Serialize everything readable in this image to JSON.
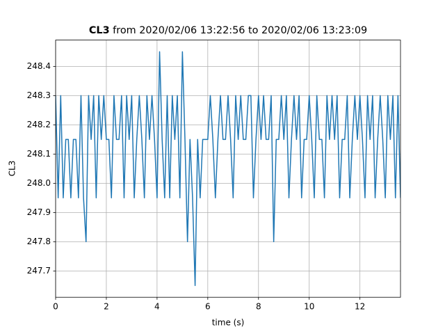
{
  "chart_data": {
    "type": "line",
    "title_bold": "CL3",
    "title": "from 2020/02/06 13:22:56 to 2020/02/06 13:23:09",
    "x_label": "time (s)",
    "y_label": "CL3",
    "xlim": [
      0,
      13.6
    ],
    "ylim": [
      247.61,
      248.49
    ],
    "xticks": [
      0,
      2,
      4,
      6,
      8,
      10,
      12
    ],
    "yticks": [
      247.7,
      247.8,
      247.9,
      {
        "value": 248,
        "label": "248.0"
      },
      248.1,
      248.2,
      248.3,
      248.4
    ],
    "grid": true,
    "x": [
      0,
      0.1,
      0.2,
      0.3,
      0.4,
      0.5,
      0.6,
      0.7,
      0.8,
      0.9,
      1,
      1.1,
      1.2,
      1.3,
      1.4,
      1.5,
      1.6,
      1.7,
      1.8,
      1.9,
      2,
      2.1,
      2.2,
      2.3,
      2.4,
      2.5,
      2.6,
      2.7,
      2.8,
      2.9,
      3,
      3.1,
      3.2,
      3.3,
      3.4,
      3.5,
      3.6,
      3.7,
      3.8,
      3.9,
      4,
      4.1,
      4.2,
      4.3,
      4.4,
      4.5,
      4.6,
      4.7,
      4.8,
      4.9,
      5,
      5.1,
      5.2,
      5.3,
      5.4,
      5.5,
      5.6,
      5.7,
      5.8,
      5.9,
      6,
      6.1,
      6.2,
      6.3,
      6.4,
      6.5,
      6.6,
      6.7,
      6.8,
      6.9,
      7,
      7.1,
      7.2,
      7.3,
      7.4,
      7.5,
      7.6,
      7.7,
      7.8,
      7.9,
      8,
      8.1,
      8.2,
      8.3,
      8.4,
      8.5,
      8.6,
      8.7,
      8.8,
      8.9,
      9,
      9.1,
      9.2,
      9.3,
      9.4,
      9.5,
      9.6,
      9.7,
      9.8,
      9.9,
      10,
      10.1,
      10.2,
      10.3,
      10.4,
      10.5,
      10.6,
      10.7,
      10.8,
      10.9,
      11,
      11.1,
      11.2,
      11.3,
      11.4,
      11.5,
      11.6,
      11.7,
      11.8,
      11.9,
      12,
      12.1,
      12.2,
      12.3,
      12.4,
      12.5,
      12.6,
      12.7,
      12.8,
      12.9,
      13,
      13.1,
      13.2,
      13.3,
      13.4,
      13.5,
      13.6
    ],
    "series": [
      {
        "name": "CL3",
        "color": "#1f77b4",
        "values": [
          248.3,
          247.95,
          248.3,
          247.95,
          248.15,
          248.15,
          247.95,
          248.15,
          248.15,
          247.95,
          248.3,
          247.95,
          247.8,
          248.3,
          248.15,
          248.3,
          247.95,
          248.3,
          248.15,
          248.3,
          248.15,
          248.15,
          247.95,
          248.3,
          248.15,
          248.15,
          248.3,
          247.95,
          248.3,
          248.15,
          248.3,
          247.95,
          248.15,
          248.3,
          248.15,
          247.95,
          248.3,
          248.15,
          248.3,
          248.15,
          247.95,
          248.45,
          248.15,
          247.95,
          248.3,
          247.95,
          248.3,
          248.15,
          248.3,
          247.95,
          248.45,
          248.15,
          247.8,
          248.15,
          247.95,
          247.65,
          248.15,
          247.95,
          248.15,
          248.15,
          248.15,
          248.3,
          248.15,
          247.95,
          248.15,
          248.3,
          248.15,
          248.15,
          248.3,
          248.15,
          247.95,
          248.3,
          248.15,
          248.3,
          248.15,
          248.15,
          248.3,
          248.3,
          247.95,
          248.15,
          248.3,
          248.15,
          248.3,
          248.15,
          248.15,
          248.3,
          247.8,
          248.15,
          248.15,
          248.3,
          248.15,
          248.3,
          247.95,
          248.15,
          248.3,
          248.15,
          248.3,
          247.95,
          248.15,
          248.15,
          248.3,
          248.15,
          247.95,
          248.3,
          248.15,
          248.15,
          247.95,
          248.3,
          248.15,
          248.3,
          248.15,
          248.3,
          247.95,
          248.15,
          248.15,
          248.3,
          247.95,
          248.15,
          248.3,
          248.15,
          248.3,
          248.15,
          247.95,
          248.3,
          248.15,
          248.3,
          247.95,
          248.15,
          248.3,
          248.15,
          247.95,
          248.3,
          248.15,
          248.3,
          247.95,
          248.3,
          247.95
        ]
      }
    ]
  }
}
